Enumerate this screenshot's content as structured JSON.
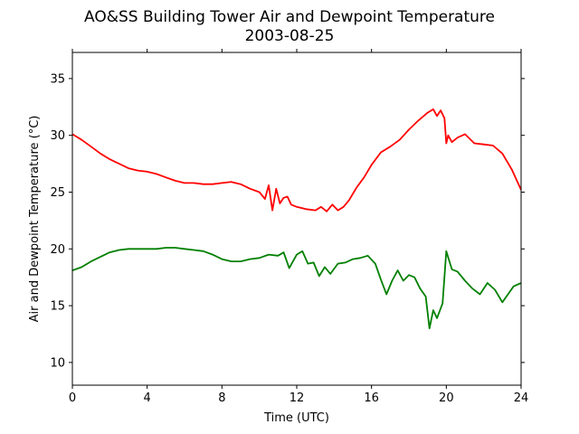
{
  "chart_data": {
    "type": "line",
    "title": "AO&SS Building Tower Air and Dewpoint Temperature",
    "subtitle": "2003-08-25",
    "xlabel": "Time (UTC)",
    "ylabel": "Air and Dewpoint Temperature (°C)",
    "xlim": [
      0,
      24
    ],
    "ylim": [
      8,
      37.3
    ],
    "xticks": [
      0,
      4,
      8,
      12,
      16,
      20,
      24
    ],
    "xtick_labels": [
      "0",
      "4",
      "8",
      "12",
      "16",
      "20",
      "24"
    ],
    "yticks": [
      10,
      15,
      20,
      25,
      30,
      35
    ],
    "ytick_labels": [
      "10",
      "15",
      "20",
      "25",
      "30",
      "35"
    ],
    "grid": false,
    "legend": "none",
    "series": [
      {
        "color": "#ff0000",
        "x": [
          0,
          0.5,
          1,
          1.5,
          2,
          2.5,
          3,
          3.5,
          4,
          4.5,
          5,
          5.5,
          6,
          6.5,
          7,
          7.5,
          8,
          8.5,
          9,
          9.5,
          10,
          10.3,
          10.5,
          10.7,
          10.9,
          11.1,
          11.3,
          11.5,
          11.7,
          12,
          12.5,
          13,
          13.3,
          13.6,
          13.9,
          14.2,
          14.5,
          14.8,
          15.2,
          15.6,
          16,
          16.5,
          17,
          17.5,
          18,
          18.5,
          19,
          19.3,
          19.5,
          19.7,
          19.9,
          20,
          20.1,
          20.3,
          20.6,
          21,
          21.5,
          22,
          22.5,
          23,
          23.5,
          24
        ],
        "y": [
          30.1,
          29.6,
          29.0,
          28.4,
          27.9,
          27.5,
          27.1,
          26.9,
          26.8,
          26.6,
          26.3,
          26.0,
          25.8,
          25.8,
          25.7,
          25.7,
          25.8,
          25.9,
          25.7,
          25.3,
          25.0,
          24.4,
          25.6,
          23.4,
          25.3,
          24.0,
          24.5,
          24.6,
          23.9,
          23.7,
          23.5,
          23.4,
          23.7,
          23.3,
          23.9,
          23.4,
          23.7,
          24.3,
          25.4,
          26.3,
          27.4,
          28.5,
          29.0,
          29.6,
          30.5,
          31.3,
          32.0,
          32.3,
          31.7,
          32.2,
          31.5,
          29.3,
          30.0,
          29.4,
          29.8,
          30.1,
          29.3,
          29.2,
          29.1,
          28.4,
          27.0,
          25.2
        ]
      },
      {
        "color": "#008000",
        "x": [
          0,
          0.5,
          1,
          1.5,
          2,
          2.5,
          3,
          3.5,
          4,
          4.5,
          5,
          5.5,
          6,
          6.5,
          7,
          7.5,
          8,
          8.5,
          9,
          9.5,
          10,
          10.5,
          11,
          11.3,
          11.6,
          12,
          12.3,
          12.6,
          12.9,
          13.2,
          13.5,
          13.8,
          14.2,
          14.6,
          15,
          15.4,
          15.8,
          16.2,
          16.5,
          16.8,
          17.1,
          17.4,
          17.7,
          18,
          18.3,
          18.6,
          18.9,
          19.1,
          19.3,
          19.5,
          19.8,
          20,
          20.3,
          20.6,
          21,
          21.4,
          21.8,
          22.2,
          22.6,
          23,
          23.3,
          23.6,
          24
        ],
        "y": [
          18.1,
          18.4,
          18.9,
          19.3,
          19.7,
          19.9,
          20.0,
          20.0,
          20.0,
          20.0,
          20.1,
          20.1,
          20.0,
          19.9,
          19.8,
          19.5,
          19.1,
          18.9,
          18.9,
          19.1,
          19.2,
          19.5,
          19.4,
          19.7,
          18.3,
          19.5,
          19.8,
          18.7,
          18.8,
          17.6,
          18.4,
          17.8,
          18.7,
          18.8,
          19.1,
          19.2,
          19.4,
          18.7,
          17.3,
          16.0,
          17.2,
          18.1,
          17.2,
          17.7,
          17.5,
          16.5,
          15.8,
          13.0,
          14.6,
          13.9,
          15.2,
          19.8,
          18.2,
          18.0,
          17.2,
          16.5,
          16.0,
          17.0,
          16.4,
          15.3,
          16.0,
          16.7,
          17.0
        ]
      }
    ]
  }
}
